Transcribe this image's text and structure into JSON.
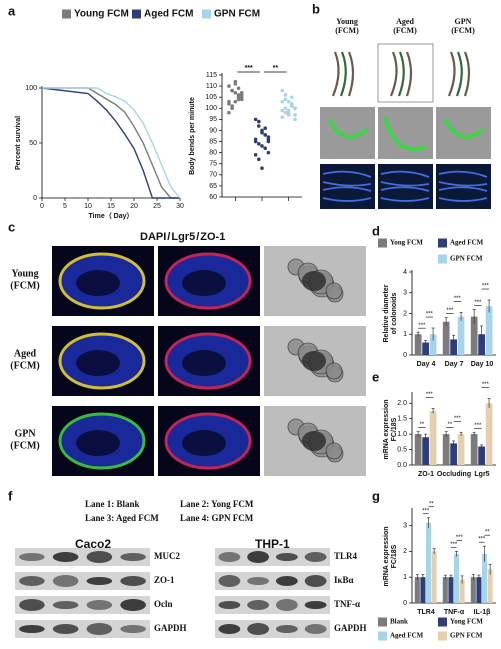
{
  "panel_labels": [
    "a",
    "b",
    "c",
    "d",
    "e",
    "f",
    "g"
  ],
  "chart_data": [
    {
      "type": "line",
      "ylabel": "Percent survival",
      "xlabel": "Time（ Day）",
      "x": [
        0,
        10,
        12,
        14,
        16,
        18,
        20,
        22,
        24,
        26,
        28,
        30
      ],
      "series": [
        {
          "name": "Young FCM",
          "color": "#7b7b7b",
          "values": [
            100,
            100,
            95,
            90,
            85,
            78,
            65,
            50,
            30,
            10,
            0,
            0
          ]
        },
        {
          "name": "Aged FCM",
          "color": "#2e3f78",
          "values": [
            100,
            95,
            88,
            80,
            70,
            58,
            45,
            25,
            0,
            0,
            0,
            0
          ]
        },
        {
          "name": "GPN FCM",
          "color": "#a6d4ea",
          "values": [
            100,
            100,
            100,
            95,
            92,
            88,
            80,
            68,
            50,
            30,
            10,
            0
          ]
        }
      ],
      "xlim": [
        0,
        30
      ],
      "ylim": [
        0,
        100
      ],
      "xticks": [
        0,
        5,
        10,
        15,
        20,
        25,
        30
      ],
      "yticks": [
        0,
        50,
        100
      ]
    },
    {
      "type": "strip",
      "ylabel": "Body bends per minute",
      "categories": [
        null,
        null,
        null
      ],
      "series": [
        {
          "color": "#7b7b7b",
          "values": [
            110,
            108,
            112,
            104,
            106,
            103,
            101,
            107,
            109,
            105,
            102,
            100,
            111,
            106,
            104,
            98,
            108,
            103,
            105,
            107
          ]
        },
        {
          "color": "#2e3f78",
          "values": [
            95,
            92,
            90,
            88,
            86,
            85,
            84,
            83,
            82,
            80,
            79,
            77,
            89,
            91,
            87,
            86,
            94,
            73,
            88,
            85
          ]
        },
        {
          "color": "#a6d4ea",
          "values": [
            108,
            104,
            103,
            101,
            100,
            99,
            98,
            97,
            102,
            100,
            96,
            106,
            99,
            101,
            95,
            103,
            100,
            98,
            105,
            97
          ]
        }
      ],
      "ylim": [
        60,
        115
      ],
      "yticks": [
        60,
        65,
        70,
        75,
        80,
        85,
        90,
        95,
        100,
        105,
        110,
        115
      ],
      "annotations": [
        {
          "text": "***",
          "groups": [
            0,
            1
          ]
        },
        {
          "text": "**",
          "groups": [
            1,
            2
          ]
        }
      ]
    },
    {
      "type": "bar",
      "ylabel": [
        "Relative diameter",
        "of colonoids"
      ],
      "categories": [
        "Day 4",
        "Day 7",
        "Day 10"
      ],
      "series": [
        {
          "name": "Yong FCM",
          "color": "#7b7b7b",
          "values": [
            1.0,
            1.6,
            1.85
          ],
          "errors": [
            0.1,
            0.2,
            0.35
          ]
        },
        {
          "name": "Aged FCM",
          "color": "#2e3f78",
          "values": [
            0.6,
            0.75,
            1.0
          ],
          "errors": [
            0.1,
            0.2,
            0.4
          ]
        },
        {
          "name": "GPN FCM",
          "color": "#a6d4ea",
          "values": [
            1.0,
            1.85,
            2.35
          ],
          "errors": [
            0.3,
            0.2,
            0.3
          ]
        }
      ],
      "ylim": [
        0,
        4
      ],
      "yticks": [
        0,
        1,
        2,
        3,
        4
      ],
      "annotations": [
        {
          "text": "***",
          "category": 0,
          "series": [
            0,
            1
          ]
        },
        {
          "text": "***",
          "category": 0,
          "series": [
            1,
            2
          ]
        },
        {
          "text": "***",
          "category": 1,
          "series": [
            0,
            1
          ]
        },
        {
          "text": "***",
          "category": 1,
          "series": [
            1,
            2
          ]
        },
        {
          "text": "***",
          "category": 2,
          "series": [
            0,
            1
          ]
        },
        {
          "text": "***",
          "category": 2,
          "series": [
            1,
            2
          ]
        }
      ]
    },
    {
      "type": "bar",
      "ylabel": [
        "mRNA expression",
        "FC/18S"
      ],
      "categories": [
        "ZO-1",
        "Occluding",
        "Lgr5"
      ],
      "series": [
        {
          "color": "#7b7b7b",
          "values": [
            1.0,
            1.0,
            1.0
          ],
          "errors": [
            0.08,
            0.08,
            0.06
          ]
        },
        {
          "color": "#2e3f78",
          "values": [
            0.9,
            0.7,
            0.6
          ],
          "errors": [
            0.1,
            0.08,
            0.05
          ]
        },
        {
          "color": "#e6cfae",
          "values": [
            1.75,
            1.0,
            2.0
          ],
          "errors": [
            0.08,
            0.06,
            0.15
          ]
        }
      ],
      "ylim": [
        0,
        2.3
      ],
      "yticks": [
        {
          "value": 0,
          "label": "0.0"
        },
        0.5,
        {
          "value": 1,
          "label": "1.0"
        },
        1.5,
        {
          "value": 2,
          "label": "2.0"
        }
      ],
      "annotations": [
        {
          "text": "**",
          "category": 0,
          "series": [
            0,
            1
          ]
        },
        {
          "text": "***",
          "category": 0,
          "series": [
            1,
            2
          ]
        },
        {
          "text": "**",
          "category": 1,
          "series": [
            0,
            1
          ]
        },
        {
          "text": "***",
          "category": 1,
          "series": [
            1,
            2
          ]
        },
        {
          "text": "***",
          "category": 2,
          "series": [
            0,
            1
          ]
        },
        {
          "text": "***",
          "category": 2,
          "series": [
            1,
            2
          ]
        }
      ]
    },
    {
      "type": "bar",
      "ylabel": [
        "mRNA expression",
        "FC/18S"
      ],
      "categories": [
        "TLR4",
        "TNF-α",
        "IL-1β"
      ],
      "series": [
        {
          "name": "Blank",
          "color": "#7b7b7b",
          "values": [
            1.0,
            1.0,
            1.0
          ],
          "errors": [
            0.1,
            0.08,
            0.1
          ]
        },
        {
          "name": "Yong FCM",
          "color": "#2e3f78",
          "values": [
            1.0,
            1.0,
            1.0
          ],
          "errors": [
            0.1,
            0.08,
            0.08
          ]
        },
        {
          "name": "Aged FCM",
          "color": "#a6d4ea",
          "values": [
            3.1,
            1.9,
            1.9
          ],
          "errors": [
            0.2,
            0.1,
            0.3
          ]
        },
        {
          "name": "GPN FCM",
          "color": "#e6cfae",
          "values": [
            2.0,
            0.9,
            1.3
          ],
          "errors": [
            0.1,
            0.15,
            0.2
          ]
        }
      ],
      "ylim": [
        0,
        3.6
      ],
      "yticks": [
        0,
        1,
        2,
        3
      ],
      "annotations": [
        {
          "text": "***",
          "category": 0,
          "series": [
            1,
            2
          ]
        },
        {
          "text": "**",
          "category": 0,
          "series": [
            2,
            3
          ]
        },
        {
          "text": "***",
          "category": 1,
          "series": [
            1,
            2
          ]
        },
        {
          "text": "***",
          "category": 1,
          "series": [
            2,
            3
          ]
        },
        {
          "text": "***",
          "category": 2,
          "series": [
            1,
            2
          ]
        },
        {
          "text": "**",
          "category": 2,
          "series": [
            2,
            3
          ]
        }
      ]
    }
  ],
  "panel_b": {
    "columns": [
      [
        "Young",
        "(FCM)"
      ],
      [
        "Aged",
        "(FCM)"
      ],
      [
        "GPN",
        "(FCM)"
      ]
    ]
  },
  "panel_c": {
    "title": [
      {
        "text": "DAPI",
        "color": "#1f3fd0"
      },
      {
        "text": "/",
        "color": "#1f3fd0"
      },
      {
        "text": "Lgr5",
        "color": "#d81b1b"
      },
      {
        "text": "/",
        "color": "#d81b1b"
      },
      {
        "text": "ZO-1",
        "color": "#1f9e1f"
      }
    ],
    "rows": [
      [
        "Young",
        "(FCM)"
      ],
      [
        "Aged",
        "(FCM)"
      ],
      [
        "GPN",
        "(FCM)"
      ]
    ]
  },
  "panel_f": {
    "lanes": [
      "Lane 1: Blank",
      "Lane 2: Yong FCM",
      "Lane 3: Aged FCM",
      "Lane 4: GPN FCM"
    ],
    "blots": [
      {
        "title": "Caco2",
        "proteins": [
          "MUC2",
          "ZO-1",
          "Ocln",
          "GAPDH"
        ]
      },
      {
        "title": "THP-1",
        "proteins": [
          "TLR4",
          "IκBα",
          "TNF-α",
          "GAPDH"
        ]
      }
    ]
  }
}
